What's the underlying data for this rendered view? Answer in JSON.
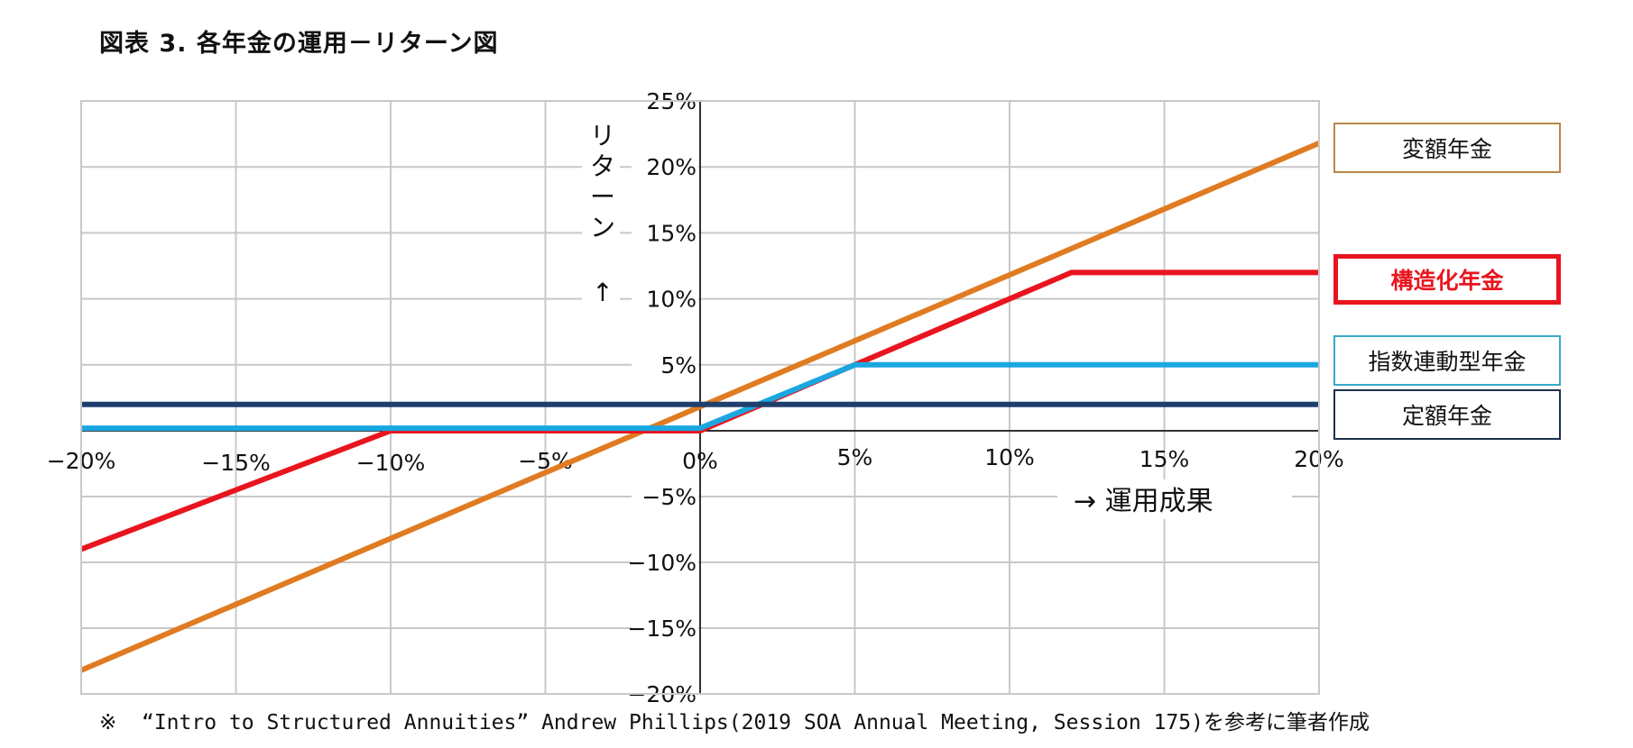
{
  "title": "図表 3.  各年金の運用－リターン図",
  "footnote": "※  “Intro to Structured Annuities” Andrew Phillips(2019 SOA Annual Meeting, Session 175)を参考に筆者作成",
  "chart_data": {
    "type": "line",
    "title": "図表 3.  各年金の運用－リターン図",
    "xlabel": "→  運用成果",
    "ylabel": "リターン ↑",
    "xlim": [
      -20,
      20
    ],
    "ylim": [
      -20,
      25
    ],
    "x_ticks": [
      "−20%",
      "−15%",
      "−10%",
      "−5%",
      "0%",
      "5%",
      "10%",
      "15%",
      "20%"
    ],
    "y_ticks": [
      "25%",
      "20%",
      "15%",
      "10%",
      "5%",
      "0%",
      "−5%",
      "−10%",
      "−15%",
      "−20%"
    ],
    "grid": true,
    "legend_position": "right",
    "series": [
      {
        "name": "変額年金",
        "color": "#e07b22",
        "x": [
          -20,
          20
        ],
        "y": [
          -18.2,
          21.8
        ]
      },
      {
        "name": "構造化年金",
        "color": "#e8151f",
        "x": [
          -20,
          -10,
          0,
          12,
          20
        ],
        "y": [
          -9,
          0,
          0,
          12,
          12
        ]
      },
      {
        "name": "指数連動型年金",
        "color": "#1aa7e0",
        "x": [
          -20,
          0,
          5,
          20
        ],
        "y": [
          0.2,
          0.2,
          5,
          5
        ]
      },
      {
        "name": "定額年金",
        "color": "#1f3f6e",
        "x": [
          -20,
          20
        ],
        "y": [
          2,
          2
        ]
      }
    ]
  }
}
